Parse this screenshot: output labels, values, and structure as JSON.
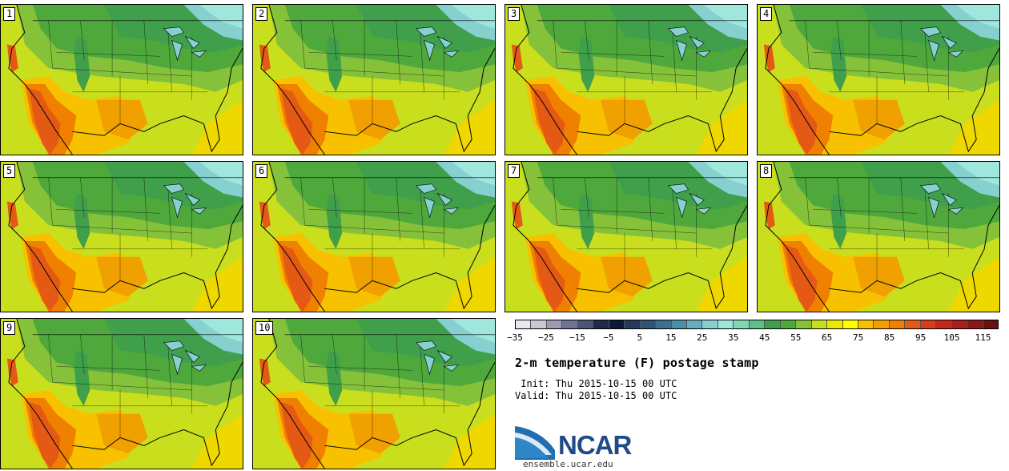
{
  "members": [
    "1",
    "2",
    "3",
    "4",
    "5",
    "6",
    "7",
    "8",
    "9",
    "10"
  ],
  "colorbar": {
    "colors": [
      "#e8e8ef",
      "#c9c9d6",
      "#9b9cb3",
      "#6f7390",
      "#4c5575",
      "#1f2a4a",
      "#0b1838",
      "#233a5c",
      "#2f5575",
      "#3c708c",
      "#4c8ea5",
      "#66aebd",
      "#86d0d0",
      "#9fe6dd",
      "#7fd7b4",
      "#5fbf8a",
      "#3f9f4a",
      "#4fa83c",
      "#85c23a",
      "#c9df1e",
      "#eaea00",
      "#ffff00",
      "#f7c100",
      "#f0a000",
      "#f08000",
      "#e45a14",
      "#d73c1c",
      "#c02a1a",
      "#a8201a",
      "#8a1818",
      "#6a1010"
    ],
    "tick_labels": [
      "−35",
      "−25",
      "−15",
      "−5",
      "5",
      "15",
      "25",
      "35",
      "45",
      "55",
      "65",
      "75",
      "85",
      "95",
      "105",
      "115"
    ]
  },
  "title": "2-m temperature (F) postage stamp",
  "init": " Init: Thu 2015-10-15 00 UTC",
  "valid": "Valid: Thu 2015-10-15 00 UTC",
  "logo_text": "NCAR",
  "site": "ensemble.ucar.edu"
}
